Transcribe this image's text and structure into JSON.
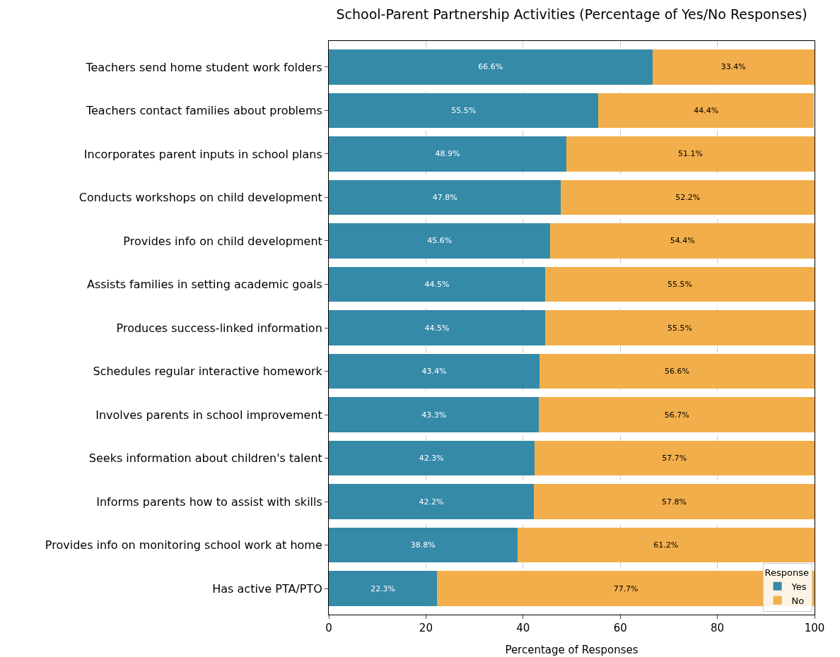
{
  "chart_data": {
    "type": "bar",
    "orientation": "horizontal",
    "stacked": true,
    "title": "School-Parent Partnership Activities (Percentage of Yes/No Responses)",
    "xlabel": "Percentage of Responses",
    "legend_title": "Response",
    "categories": [
      "Teachers send home student work folders",
      "Teachers contact families about problems",
      "Incorporates parent inputs in school plans",
      "Conducts workshops on child development",
      "Provides info on child development",
      "Assists families in setting academic goals",
      "Produces success-linked information",
      "Schedules regular interactive homework",
      "Involves parents in school improvement",
      "Seeks information about children's talent",
      "Informs parents how to assist with skills",
      "Provides info on monitoring school work at home",
      "Has active PTA/PTO"
    ],
    "series": [
      {
        "name": "Yes",
        "color": "#358aa8",
        "values": [
          66.6,
          55.5,
          48.9,
          47.8,
          45.6,
          44.5,
          44.5,
          43.4,
          43.3,
          42.3,
          42.2,
          38.8,
          22.3
        ],
        "value_labels": [
          "66.6%",
          "55.5%",
          "48.9%",
          "47.8%",
          "45.6%",
          "44.5%",
          "44.5%",
          "43.4%",
          "43.3%",
          "42.3%",
          "42.2%",
          "38.8%",
          "22.3%"
        ]
      },
      {
        "name": "No",
        "color": "#f2ae4b",
        "values": [
          33.4,
          44.4,
          51.1,
          52.2,
          54.4,
          55.5,
          55.5,
          56.6,
          56.7,
          57.7,
          57.8,
          61.2,
          77.7
        ],
        "value_labels": [
          "33.4%",
          "44.4%",
          "51.1%",
          "52.2%",
          "54.4%",
          "55.5%",
          "55.5%",
          "56.6%",
          "56.7%",
          "57.7%",
          "57.8%",
          "61.2%",
          "77.7%"
        ]
      }
    ],
    "xlim": [
      0,
      100
    ],
    "xticks": [
      0,
      20,
      40,
      60,
      80,
      100
    ],
    "grid": "x",
    "legend": "bottom right"
  }
}
